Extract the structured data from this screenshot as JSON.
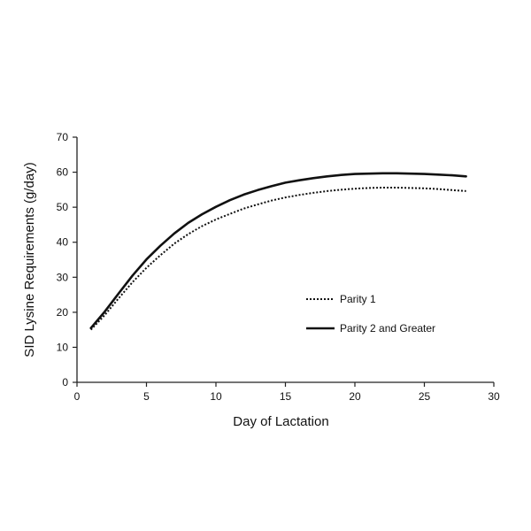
{
  "chart_data": {
    "type": "line",
    "title": "",
    "xlabel": "Day of Lactation",
    "ylabel": "SID Lysine Requirements  (g/day)",
    "xlim": [
      0,
      30
    ],
    "ylim": [
      0,
      70
    ],
    "xticks": [
      0,
      5,
      10,
      15,
      20,
      25,
      30
    ],
    "yticks": [
      0,
      10,
      20,
      30,
      40,
      50,
      60,
      70
    ],
    "grid": false,
    "legend_position": "center-right",
    "series": [
      {
        "name": "Parity 1",
        "style": "dotted",
        "color": "#111111",
        "x": [
          1,
          2,
          3,
          4,
          5,
          6,
          7,
          8,
          9,
          10,
          11,
          12,
          13,
          14,
          15,
          16,
          17,
          18,
          19,
          20,
          21,
          22,
          23,
          24,
          25,
          26,
          27,
          28
        ],
        "y": [
          15.0,
          19.2,
          24.0,
          28.6,
          32.7,
          36.3,
          39.6,
          42.3,
          44.6,
          46.5,
          48.1,
          49.6,
          50.8,
          51.9,
          52.8,
          53.5,
          54.1,
          54.6,
          55.0,
          55.3,
          55.5,
          55.6,
          55.6,
          55.5,
          55.4,
          55.2,
          54.9,
          54.6
        ]
      },
      {
        "name": "Parity 2 and Greater",
        "style": "solid",
        "color": "#111111",
        "x": [
          1,
          2,
          3,
          4,
          5,
          6,
          7,
          8,
          9,
          10,
          11,
          12,
          13,
          14,
          15,
          16,
          17,
          18,
          19,
          20,
          21,
          22,
          23,
          24,
          25,
          26,
          27,
          28
        ],
        "y": [
          15.5,
          20.2,
          25.4,
          30.5,
          35.1,
          39.0,
          42.5,
          45.5,
          48.0,
          50.1,
          52.0,
          53.6,
          54.9,
          56.0,
          57.0,
          57.7,
          58.3,
          58.8,
          59.2,
          59.5,
          59.6,
          59.7,
          59.7,
          59.6,
          59.5,
          59.3,
          59.1,
          58.8
        ]
      }
    ]
  }
}
